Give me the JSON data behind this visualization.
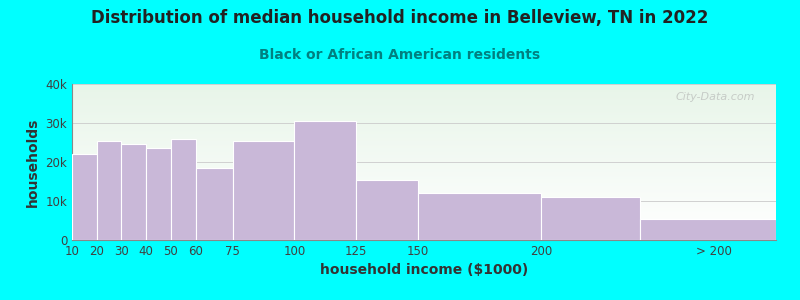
{
  "title": "Distribution of median household income in Belleview, TN in 2022",
  "subtitle": "Black or African American residents",
  "xlabel": "household income ($1000)",
  "ylabel": "households",
  "background_color": "#00FFFF",
  "plot_bg_top": "#e8f5e9",
  "plot_bg_bottom": "#f8fff8",
  "bar_color": "#c9b8d8",
  "bar_edge_color": "#ffffff",
  "categories": [
    "10",
    "20",
    "30",
    "40",
    "50",
    "60",
    "75",
    "100",
    "125",
    "150",
    "200",
    "> 200"
  ],
  "values": [
    22000,
    25500,
    24500,
    23500,
    26000,
    18500,
    25500,
    30500,
    15500,
    12000,
    11000,
    5500
  ],
  "bin_lefts": [
    10,
    20,
    30,
    40,
    50,
    60,
    75,
    100,
    125,
    150,
    200,
    240
  ],
  "bin_widths": [
    10,
    10,
    10,
    10,
    10,
    15,
    25,
    25,
    25,
    50,
    40,
    55
  ],
  "ylim": [
    0,
    40000
  ],
  "yticks": [
    0,
    10000,
    20000,
    30000,
    40000
  ],
  "ytick_labels": [
    "0",
    "10k",
    "20k",
    "30k",
    "40k"
  ],
  "xtick_positions": [
    10,
    20,
    30,
    40,
    50,
    60,
    75,
    100,
    125,
    150,
    200,
    270
  ],
  "xtick_labels": [
    "10",
    "20",
    "30",
    "40",
    "50",
    "60",
    "75",
    "100",
    "125",
    "150",
    "200",
    "> 200"
  ],
  "watermark": "City-Data.com",
  "title_fontsize": 12,
  "subtitle_fontsize": 10,
  "subtitle_color": "#008080",
  "title_color": "#222222",
  "axis_label_fontsize": 10,
  "tick_fontsize": 8.5
}
